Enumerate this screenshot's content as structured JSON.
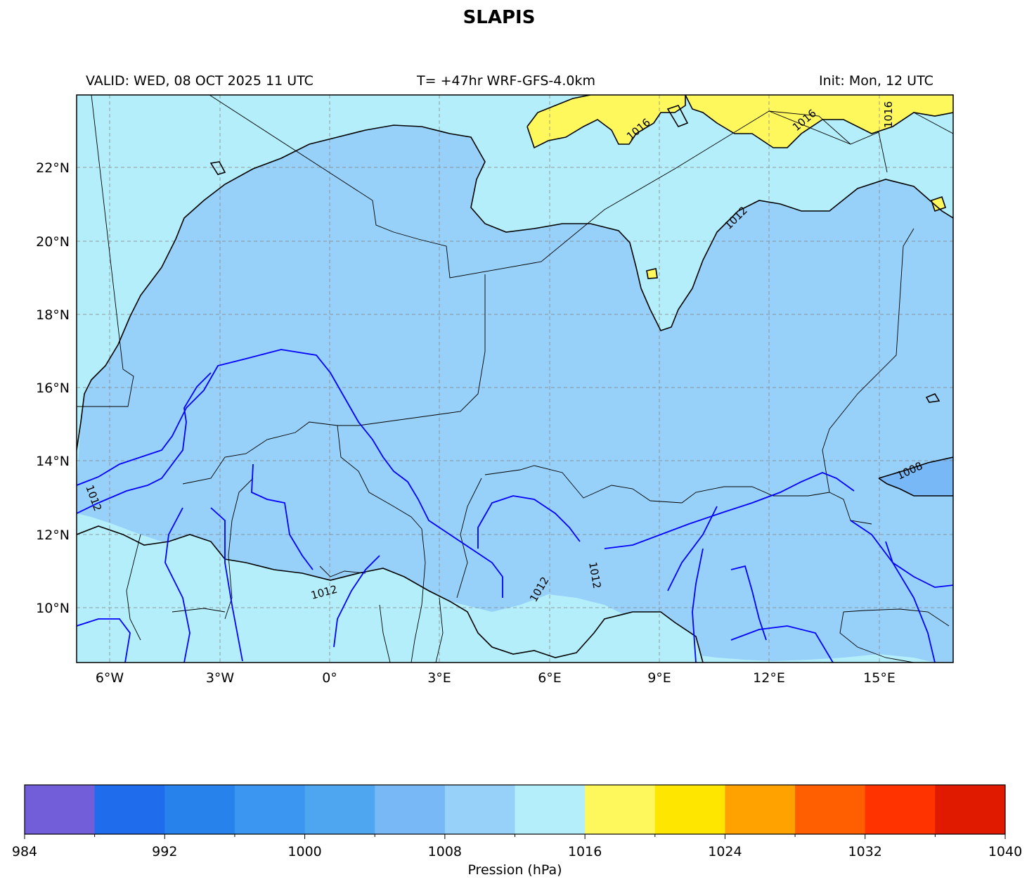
{
  "title": "SLAPIS",
  "header": {
    "valid": "VALID: WED, 08 OCT 2025 11 UTC",
    "run": "T= +47hr WRF-GFS-4.0km",
    "init": "Init: Mon, 12 UTC"
  },
  "map": {
    "lon_labels": [
      "6°W",
      "3°W",
      "0°",
      "3°E",
      "6°E",
      "9°E",
      "12°E",
      "15°E"
    ],
    "lat_labels": [
      "22°N",
      "20°N",
      "18°N",
      "16°N",
      "14°N",
      "12°N",
      "10°N"
    ],
    "contour_labels": [
      "1016",
      "1016",
      "1016",
      "1012",
      "1012",
      "1012",
      "1012",
      "1012",
      "1008"
    ],
    "field_colors": {
      "1008-1012": "#97d0f8",
      "1012-1016": "#b3eefa",
      "1016-1020": "#fff85d",
      "1004-1008": "#78b8f6"
    },
    "isobar_color": "#0000ff",
    "gridline_style": "dashed grey"
  },
  "colorbar": {
    "ticks": [
      "984",
      "992",
      "1000",
      "1008",
      "1016",
      "1024",
      "1032",
      "1040"
    ],
    "colors": [
      "#735ed9",
      "#1f6ced",
      "#2882ec",
      "#3b96f2",
      "#4fa6f0",
      "#78b8f6",
      "#97d0f8",
      "#b3eefa",
      "#fff85d",
      "#ffe600",
      "#ffa200",
      "#ff5f00",
      "#ff3300",
      "#e01a00"
    ],
    "label": "Pression (hPa)"
  }
}
